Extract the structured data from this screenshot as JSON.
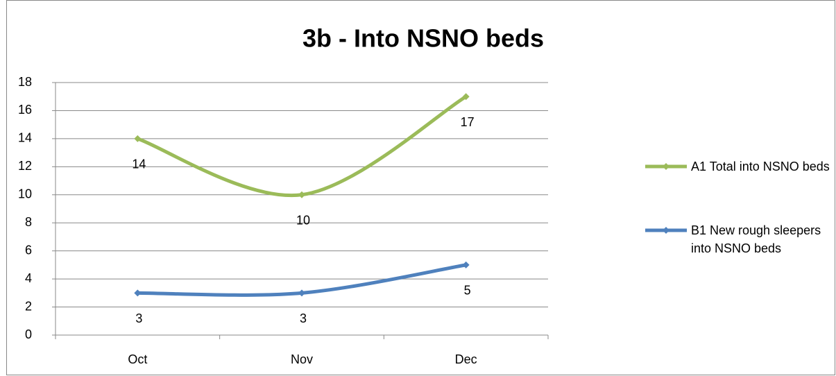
{
  "chart_data": {
    "type": "line",
    "title": "3b - Into NSNO beds",
    "categories": [
      "Oct",
      "Nov",
      "Dec"
    ],
    "series": [
      {
        "name": "A1 Total into NSNO beds",
        "color": "#9bbb59",
        "values": [
          14,
          10,
          17
        ]
      },
      {
        "name": "B1 New rough sleepers into NSNO beds",
        "color": "#4f81bd",
        "values": [
          3,
          3,
          5
        ]
      }
    ],
    "ylim": [
      0,
      18
    ],
    "yticks": [
      0,
      2,
      4,
      6,
      8,
      10,
      12,
      14,
      16,
      18
    ],
    "grid": true,
    "smooth": true,
    "legend": "right"
  }
}
